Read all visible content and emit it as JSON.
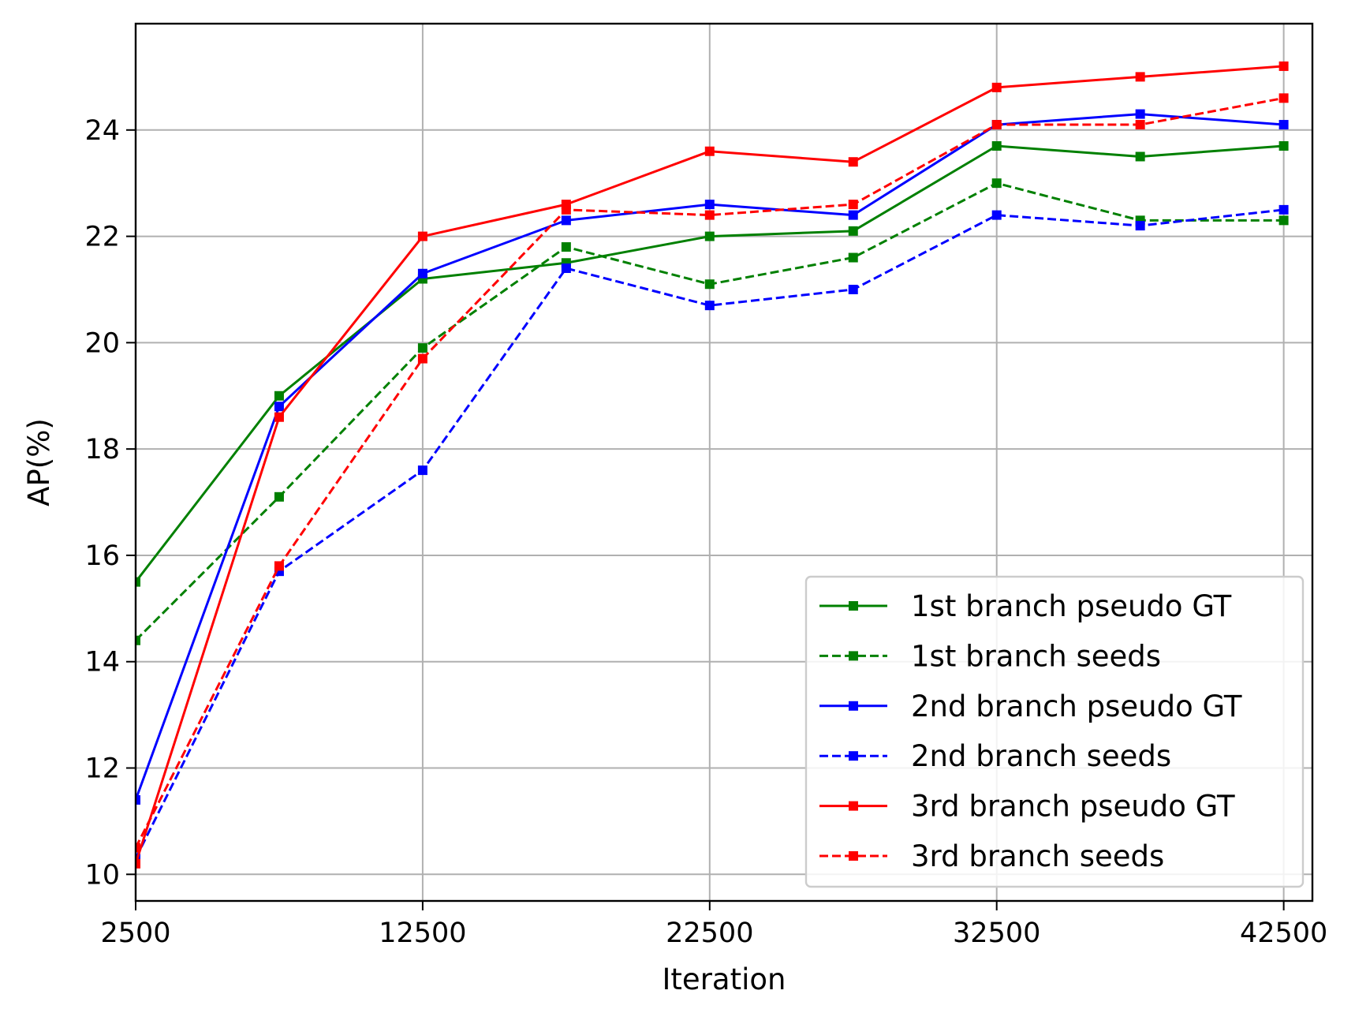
{
  "chart_data": {
    "type": "line",
    "title": "",
    "xlabel": "Iteration",
    "ylabel": "AP(%)",
    "xlim": [
      2500,
      43500
    ],
    "ylim": [
      9.5,
      26.0
    ],
    "xticks": [
      2500,
      12500,
      22500,
      32500,
      42500
    ],
    "yticks": [
      10,
      12,
      14,
      16,
      18,
      20,
      22,
      24
    ],
    "grid": true,
    "legend_position": "lower-right",
    "x": [
      2500,
      7500,
      12500,
      17500,
      22500,
      27500,
      32500,
      37500,
      42500
    ],
    "series": [
      {
        "name": "1st branch pseudo GT",
        "color": "#008000",
        "dash": "solid",
        "values": [
          15.5,
          19.0,
          21.2,
          21.5,
          22.0,
          22.1,
          23.7,
          23.5,
          23.7
        ]
      },
      {
        "name": "1st branch seeds",
        "color": "#008000",
        "dash": "dashed",
        "values": [
          14.4,
          17.1,
          19.9,
          21.8,
          21.1,
          21.6,
          23.0,
          22.3,
          22.3
        ]
      },
      {
        "name": "2nd branch pseudo GT",
        "color": "#0000ff",
        "dash": "solid",
        "values": [
          11.4,
          18.8,
          21.3,
          22.3,
          22.6,
          22.4,
          24.1,
          24.3,
          24.1
        ]
      },
      {
        "name": "2nd branch seeds",
        "color": "#0000ff",
        "dash": "dashed",
        "values": [
          10.3,
          15.7,
          17.6,
          21.4,
          20.7,
          21.0,
          22.4,
          22.2,
          22.5
        ]
      },
      {
        "name": "3rd branch pseudo GT",
        "color": "#ff0000",
        "dash": "solid",
        "values": [
          10.2,
          18.6,
          22.0,
          22.6,
          23.6,
          23.4,
          24.8,
          25.0,
          25.2
        ]
      },
      {
        "name": "3rd branch seeds",
        "color": "#ff0000",
        "dash": "dashed",
        "values": [
          10.5,
          15.8,
          19.7,
          22.5,
          22.4,
          22.6,
          24.1,
          24.1,
          24.6
        ]
      }
    ]
  }
}
